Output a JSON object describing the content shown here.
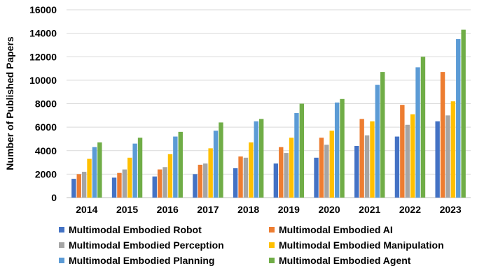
{
  "chart_data": {
    "type": "bar",
    "title": "",
    "xlabel": "",
    "ylabel": "Number of Published Papers",
    "ylim": [
      0,
      16000
    ],
    "yticks": [
      "0",
      "2000",
      "4000",
      "6000",
      "8000",
      "10000",
      "12000",
      "14000",
      "16000"
    ],
    "grid": true,
    "legend_position": "bottom",
    "categories": [
      "2014",
      "2015",
      "2016",
      "2017",
      "2018",
      "2019",
      "2020",
      "2021",
      "2022",
      "2023"
    ],
    "series": [
      {
        "name": "Multimodal Embodied Robot",
        "color": "#4472C4",
        "values": [
          1600,
          1700,
          1800,
          2000,
          2500,
          2900,
          3400,
          4400,
          5200,
          6500
        ]
      },
      {
        "name": "Multimodal Embodied AI",
        "color": "#ED7D31",
        "values": [
          2000,
          2100,
          2400,
          2800,
          3500,
          4300,
          5100,
          6700,
          7900,
          10700
        ]
      },
      {
        "name": "Multimodal Embodied Perception",
        "color": "#A5A5A5",
        "values": [
          2200,
          2400,
          2600,
          2900,
          3400,
          3800,
          4500,
          5300,
          6200,
          7000
        ]
      },
      {
        "name": "Multimodal Embodied Manipulation",
        "color": "#FFC000",
        "values": [
          3300,
          3400,
          3700,
          4200,
          4700,
          5100,
          5700,
          6500,
          7100,
          8200
        ]
      },
      {
        "name": "Multimodal Embodied Planning",
        "color": "#5B9BD5",
        "values": [
          4300,
          4600,
          5200,
          5700,
          6500,
          7200,
          8100,
          9600,
          11100,
          13500
        ]
      },
      {
        "name": "Multimodal Embodied Agent",
        "color": "#70AD47",
        "values": [
          4700,
          5100,
          5600,
          6400,
          6700,
          8000,
          8400,
          10700,
          12000,
          14300
        ]
      }
    ]
  }
}
